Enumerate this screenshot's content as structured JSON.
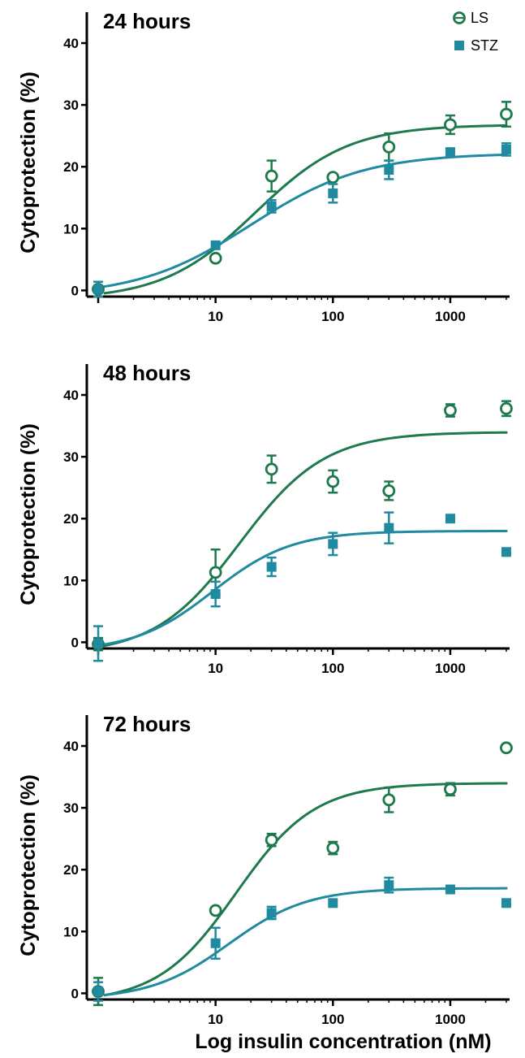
{
  "colors": {
    "ls": "#1e7a4c",
    "stz": "#1f8aa0",
    "axis": "#000000"
  },
  "legend": {
    "position": "top-right",
    "entries": [
      {
        "label": "LS",
        "marker": "open-circle",
        "color": "#1e7a4c"
      },
      {
        "label": "STZ",
        "marker": "filled-square",
        "color": "#1f8aa0"
      }
    ]
  },
  "xlabel": "Log insulin concentration (nM)",
  "chart_data": [
    {
      "type": "scatter",
      "title": "24 hours",
      "ylabel": "Cytoprotection (%)",
      "xscale": "log",
      "xlim": [
        0.8,
        3200
      ],
      "ylim": [
        -1,
        45
      ],
      "xticks": [
        10,
        100,
        1000
      ],
      "yticks": [
        0,
        10,
        20,
        30,
        40
      ],
      "series": [
        {
          "name": "LS",
          "points": [
            {
              "x": 1,
              "y": 0.2,
              "err": 1.2
            },
            {
              "x": 10,
              "y": 5.2,
              "err": 0
            },
            {
              "x": 30,
              "y": 18.5,
              "err": 2.5
            },
            {
              "x": 100,
              "y": 18.3,
              "err": 0
            },
            {
              "x": 300,
              "y": 23.2,
              "err": 2.2
            },
            {
              "x": 1000,
              "y": 26.8,
              "err": 1.5
            },
            {
              "x": 3000,
              "y": 28.5,
              "err": 2.0
            }
          ],
          "fit": {
            "bottom": -1.5,
            "top": 26.8,
            "ec50": 22,
            "hill": 1.1
          }
        },
        {
          "name": "STZ",
          "points": [
            {
              "x": 1,
              "y": 0.2,
              "err": 1.2
            },
            {
              "x": 10,
              "y": 7.3,
              "err": 0
            },
            {
              "x": 30,
              "y": 13.6,
              "err": 1.0
            },
            {
              "x": 100,
              "y": 15.7,
              "err": 1.5
            },
            {
              "x": 300,
              "y": 19.5,
              "err": 1.5
            },
            {
              "x": 1000,
              "y": 22.3,
              "err": 0.7
            },
            {
              "x": 3000,
              "y": 22.8,
              "err": 1.0
            }
          ],
          "fit": {
            "bottom": -1,
            "top": 22.2,
            "ec50": 20,
            "hill": 0.9
          }
        }
      ]
    },
    {
      "type": "scatter",
      "title": "48 hours",
      "ylabel": "Cytoprotection (%)",
      "xscale": "log",
      "xlim": [
        0.8,
        3200
      ],
      "ylim": [
        -1,
        45
      ],
      "xticks": [
        10,
        100,
        1000
      ],
      "yticks": [
        0,
        10,
        20,
        30,
        40
      ],
      "series": [
        {
          "name": "LS",
          "points": [
            {
              "x": 1,
              "y": -0.3,
              "err": 1.0
            },
            {
              "x": 10,
              "y": 11.3,
              "err": 3.7
            },
            {
              "x": 30,
              "y": 28.0,
              "err": 2.2
            },
            {
              "x": 100,
              "y": 26.0,
              "err": 1.8
            },
            {
              "x": 300,
              "y": 24.5,
              "err": 1.5
            },
            {
              "x": 1000,
              "y": 37.5,
              "err": 1.0
            },
            {
              "x": 3000,
              "y": 37.8,
              "err": 1.2
            }
          ],
          "fit": {
            "bottom": -2,
            "top": 34,
            "ec50": 16,
            "hill": 1.2
          }
        },
        {
          "name": "STZ",
          "points": [
            {
              "x": 1,
              "y": -0.2,
              "err": 2.8
            },
            {
              "x": 10,
              "y": 7.8,
              "err": 2.0
            },
            {
              "x": 30,
              "y": 12.2,
              "err": 1.5
            },
            {
              "x": 100,
              "y": 15.9,
              "err": 1.8
            },
            {
              "x": 300,
              "y": 18.5,
              "err": 2.5
            },
            {
              "x": 1000,
              "y": 20.0,
              "err": 0
            },
            {
              "x": 3000,
              "y": 14.6,
              "err": 0
            }
          ],
          "fit": {
            "bottom": -1.5,
            "top": 18,
            "ec50": 9.5,
            "hill": 1.3
          }
        }
      ]
    },
    {
      "type": "scatter",
      "title": "72 hours",
      "ylabel": "Cytoprotection (%)",
      "xscale": "log",
      "xlim": [
        0.8,
        3200
      ],
      "ylim": [
        -1,
        45
      ],
      "xticks": [
        10,
        100,
        1000
      ],
      "yticks": [
        0,
        10,
        20,
        30,
        40
      ],
      "series": [
        {
          "name": "LS",
          "points": [
            {
              "x": 1,
              "y": 0.3,
              "err": 2.2
            },
            {
              "x": 10,
              "y": 13.4,
              "err": 0
            },
            {
              "x": 30,
              "y": 24.8,
              "err": 1.0
            },
            {
              "x": 100,
              "y": 23.5,
              "err": 1.0
            },
            {
              "x": 300,
              "y": 31.3,
              "err": 2.0
            },
            {
              "x": 1000,
              "y": 33.0,
              "err": 1.0
            },
            {
              "x": 3000,
              "y": 39.7,
              "err": 0
            }
          ],
          "fit": {
            "bottom": -1.5,
            "top": 34,
            "ec50": 15,
            "hill": 1.3
          }
        },
        {
          "name": "STZ",
          "points": [
            {
              "x": 1,
              "y": 0.3,
              "err": 1.5
            },
            {
              "x": 10,
              "y": 8.1,
              "err": 2.5
            },
            {
              "x": 30,
              "y": 13.0,
              "err": 1.0
            },
            {
              "x": 100,
              "y": 14.6,
              "err": 0
            },
            {
              "x": 300,
              "y": 17.5,
              "err": 1.2
            },
            {
              "x": 1000,
              "y": 16.8,
              "err": 0
            },
            {
              "x": 3000,
              "y": 14.6,
              "err": 0
            }
          ],
          "fit": {
            "bottom": -1,
            "top": 17,
            "ec50": 13,
            "hill": 1.3
          }
        }
      ]
    }
  ]
}
